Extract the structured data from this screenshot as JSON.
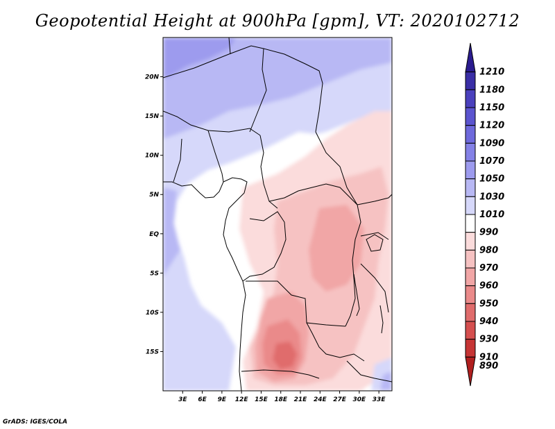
{
  "title": "Geopotential Height at 900hPa [gpm], VT: 2020102712",
  "credit": "GrADS: IGES/COLA",
  "map": {
    "lon_range": [
      0,
      35
    ],
    "lat_range": [
      -20,
      25
    ],
    "x_ticks": [
      {
        "lon": 3,
        "label": "3E"
      },
      {
        "lon": 6,
        "label": "6E"
      },
      {
        "lon": 9,
        "label": "9E"
      },
      {
        "lon": 12,
        "label": "12E"
      },
      {
        "lon": 15,
        "label": "15E"
      },
      {
        "lon": 18,
        "label": "18E"
      },
      {
        "lon": 21,
        "label": "21E"
      },
      {
        "lon": 24,
        "label": "24E"
      },
      {
        "lon": 27,
        "label": "27E"
      },
      {
        "lon": 30,
        "label": "30E"
      },
      {
        "lon": 33,
        "label": "33E"
      }
    ],
    "y_ticks": [
      {
        "lat": 20,
        "label": "20N"
      },
      {
        "lat": 15,
        "label": "15N"
      },
      {
        "lat": 10,
        "label": "10N"
      },
      {
        "lat": 5,
        "label": "5N"
      },
      {
        "lat": 0,
        "label": "EQ"
      },
      {
        "lat": -5,
        "label": "5S"
      },
      {
        "lat": -10,
        "label": "10S"
      },
      {
        "lat": -15,
        "label": "15S"
      }
    ]
  },
  "colorbar": {
    "levels": [
      {
        "label": "1210",
        "color": "#2a1b8e"
      },
      {
        "label": "1180",
        "color": "#3a2ea6"
      },
      {
        "label": "1150",
        "color": "#4a40bd"
      },
      {
        "label": "1120",
        "color": "#5b54cf"
      },
      {
        "label": "1090",
        "color": "#6e69dc"
      },
      {
        "label": "1070",
        "color": "#8481e6"
      },
      {
        "label": "1050",
        "color": "#9d9bee"
      },
      {
        "label": "1030",
        "color": "#b8b8f4"
      },
      {
        "label": "1010",
        "color": "#d6d8fa"
      },
      {
        "label": "990",
        "color": "#ffffff"
      },
      {
        "label": "980",
        "color": "#fbdcdc"
      },
      {
        "label": "970",
        "color": "#f6c2c2"
      },
      {
        "label": "960",
        "color": "#f1a6a6"
      },
      {
        "label": "950",
        "color": "#ea8a8a"
      },
      {
        "label": "940",
        "color": "#e06c6c"
      },
      {
        "label": "930",
        "color": "#d54f4f"
      },
      {
        "label": "910",
        "color": "#c63535"
      },
      {
        "label": "890",
        "color": "#b01f1f"
      }
    ]
  }
}
